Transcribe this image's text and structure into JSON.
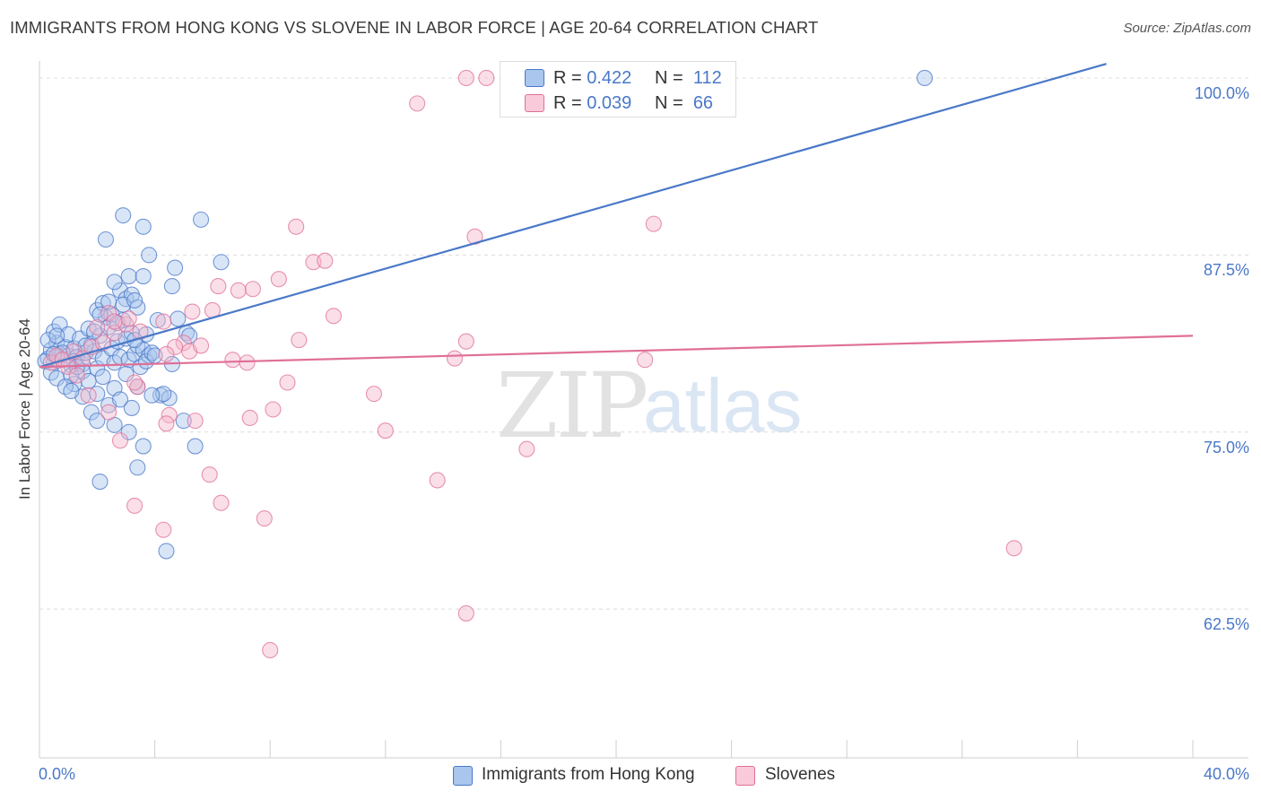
{
  "chart_data": {
    "type": "scatter",
    "title": "IMMIGRANTS FROM HONG KONG VS SLOVENE IN LABOR FORCE | AGE 20-64 CORRELATION CHART",
    "source": "Source: ZipAtlas.com",
    "ylabel": "In Labor Force | Age 20-64",
    "xlabel": "",
    "xlim": [
      0,
      40
    ],
    "ylim": [
      52,
      101.2
    ],
    "x_tick_labels": [
      "0.0%",
      "40.0%"
    ],
    "y_ticks": [
      62.5,
      75.0,
      87.5,
      100.0
    ],
    "y_tick_labels": [
      "62.5%",
      "75.0%",
      "87.5%",
      "100.0%"
    ],
    "grid": true,
    "watermark": {
      "zip": "ZIP",
      "atlas": "atlas"
    },
    "legend_stats": [
      {
        "r_label": "R =",
        "r_value": "0.422",
        "n_label": "N =",
        "n_value": "112"
      },
      {
        "r_label": "R =",
        "r_value": "0.039",
        "n_label": "N =",
        "n_value": "66"
      }
    ],
    "series": [
      {
        "name": "Immigrants from Hong Kong",
        "color": "#4a78c8",
        "fill": "#a9c6ee",
        "trend": {
          "x": [
            0,
            37
          ],
          "y": [
            79.6,
            101.0
          ]
        },
        "points": [
          [
            0.3,
            80.2
          ],
          [
            0.4,
            80.8
          ],
          [
            0.5,
            79.9
          ],
          [
            0.6,
            81.3
          ],
          [
            0.7,
            80.5
          ],
          [
            0.8,
            80.1
          ],
          [
            0.9,
            81.0
          ],
          [
            1.0,
            80.4
          ],
          [
            1.1,
            79.7
          ],
          [
            1.2,
            80.9
          ],
          [
            1.3,
            80.3
          ],
          [
            0.5,
            82.1
          ],
          [
            0.7,
            82.6
          ],
          [
            1.0,
            81.9
          ],
          [
            1.2,
            80.0
          ],
          [
            1.4,
            81.6
          ],
          [
            1.5,
            79.8
          ],
          [
            1.6,
            80.6
          ],
          [
            1.7,
            82.3
          ],
          [
            1.8,
            81.2
          ],
          [
            1.9,
            80.7
          ],
          [
            2.0,
            79.5
          ],
          [
            2.1,
            81.8
          ],
          [
            2.2,
            80.2
          ],
          [
            2.3,
            83.1
          ],
          [
            2.4,
            82.4
          ],
          [
            2.5,
            80.9
          ],
          [
            2.6,
            79.9
          ],
          [
            2.7,
            81.4
          ],
          [
            2.8,
            80.3
          ],
          [
            2.9,
            82.9
          ],
          [
            3.0,
            81.6
          ],
          [
            3.1,
            80.1
          ],
          [
            3.2,
            82.0
          ],
          [
            3.3,
            80.5
          ],
          [
            3.4,
            81.1
          ],
          [
            3.5,
            79.6
          ],
          [
            3.6,
            80.8
          ],
          [
            3.7,
            81.9
          ],
          [
            3.8,
            80.4
          ],
          [
            2.0,
            83.6
          ],
          [
            2.2,
            84.1
          ],
          [
            2.5,
            83.3
          ],
          [
            2.8,
            85.0
          ],
          [
            3.0,
            84.4
          ],
          [
            2.6,
            85.6
          ],
          [
            3.2,
            84.7
          ],
          [
            2.9,
            84.0
          ],
          [
            3.4,
            83.8
          ],
          [
            3.1,
            86.0
          ],
          [
            2.3,
            88.6
          ],
          [
            2.9,
            90.3
          ],
          [
            3.6,
            89.5
          ],
          [
            3.8,
            87.5
          ],
          [
            4.7,
            86.6
          ],
          [
            5.6,
            90.0
          ],
          [
            6.3,
            87.0
          ],
          [
            4.6,
            85.3
          ],
          [
            3.6,
            86.0
          ],
          [
            3.3,
            84.3
          ],
          [
            1.5,
            79.3
          ],
          [
            1.7,
            78.6
          ],
          [
            2.0,
            77.7
          ],
          [
            2.2,
            78.9
          ],
          [
            2.4,
            76.9
          ],
          [
            2.6,
            78.1
          ],
          [
            2.8,
            77.3
          ],
          [
            3.0,
            79.1
          ],
          [
            3.2,
            76.7
          ],
          [
            3.4,
            78.2
          ],
          [
            1.2,
            78.4
          ],
          [
            1.5,
            77.5
          ],
          [
            1.8,
            76.4
          ],
          [
            2.0,
            75.8
          ],
          [
            2.6,
            75.5
          ],
          [
            3.1,
            75.0
          ],
          [
            3.6,
            74.0
          ],
          [
            4.2,
            77.6
          ],
          [
            4.5,
            77.4
          ],
          [
            5.0,
            75.8
          ],
          [
            5.4,
            74.0
          ],
          [
            3.4,
            72.5
          ],
          [
            2.1,
            71.5
          ],
          [
            4.4,
            66.6
          ],
          [
            4.8,
            83.0
          ],
          [
            4.1,
            82.9
          ],
          [
            5.1,
            82.0
          ],
          [
            3.7,
            80.0
          ],
          [
            4.3,
            77.7
          ],
          [
            3.9,
            77.6
          ],
          [
            0.4,
            79.2
          ],
          [
            0.6,
            78.8
          ],
          [
            0.8,
            80.6
          ],
          [
            1.1,
            79.0
          ],
          [
            1.3,
            79.6
          ],
          [
            0.2,
            80.0
          ],
          [
            0.3,
            81.5
          ],
          [
            0.5,
            80.5
          ],
          [
            0.9,
            78.2
          ],
          [
            1.1,
            77.9
          ],
          [
            1.6,
            81.1
          ],
          [
            1.9,
            82.1
          ],
          [
            2.1,
            83.3
          ],
          [
            2.4,
            84.2
          ],
          [
            2.7,
            82.7
          ],
          [
            3.3,
            81.5
          ],
          [
            3.9,
            80.6
          ],
          [
            4.0,
            80.4
          ],
          [
            4.6,
            79.8
          ],
          [
            5.2,
            81.8
          ],
          [
            30.7,
            100.0
          ],
          [
            0.6,
            81.8
          ]
        ]
      },
      {
        "name": "Slovenes",
        "color": "#e06f98",
        "fill": "#f5b8cc",
        "trend": {
          "x": [
            0,
            40
          ],
          "y": [
            79.6,
            81.8
          ]
        },
        "points": [
          [
            0.4,
            79.9
          ],
          [
            0.6,
            80.4
          ],
          [
            0.8,
            80.1
          ],
          [
            1.0,
            79.6
          ],
          [
            1.2,
            80.7
          ],
          [
            1.5,
            80.2
          ],
          [
            1.8,
            81.0
          ],
          [
            2.0,
            82.4
          ],
          [
            2.2,
            81.3
          ],
          [
            2.6,
            82.0
          ],
          [
            2.4,
            83.4
          ],
          [
            3.0,
            82.6
          ],
          [
            3.5,
            82.1
          ],
          [
            4.3,
            82.8
          ],
          [
            5.3,
            83.5
          ],
          [
            5.0,
            81.3
          ],
          [
            5.2,
            80.7
          ],
          [
            4.7,
            81.0
          ],
          [
            5.6,
            81.1
          ],
          [
            6.0,
            83.6
          ],
          [
            4.4,
            80.5
          ],
          [
            6.7,
            80.1
          ],
          [
            7.2,
            79.9
          ],
          [
            6.9,
            85.0
          ],
          [
            7.4,
            85.1
          ],
          [
            8.3,
            85.8
          ],
          [
            8.9,
            89.5
          ],
          [
            9.5,
            87.0
          ],
          [
            9.9,
            87.1
          ],
          [
            10.2,
            83.2
          ],
          [
            9.0,
            81.5
          ],
          [
            6.2,
            85.3
          ],
          [
            14.4,
            80.2
          ],
          [
            15.1,
            88.8
          ],
          [
            21.3,
            89.7
          ],
          [
            21.0,
            80.1
          ],
          [
            13.8,
            71.6
          ],
          [
            12.0,
            75.1
          ],
          [
            11.6,
            77.7
          ],
          [
            8.6,
            78.5
          ],
          [
            8.1,
            76.6
          ],
          [
            7.3,
            76.0
          ],
          [
            6.3,
            70.0
          ],
          [
            5.9,
            72.0
          ],
          [
            5.4,
            75.8
          ],
          [
            4.5,
            76.2
          ],
          [
            4.4,
            75.6
          ],
          [
            3.4,
            78.2
          ],
          [
            3.3,
            78.5
          ],
          [
            2.4,
            76.4
          ],
          [
            2.8,
            74.4
          ],
          [
            3.3,
            69.8
          ],
          [
            4.3,
            68.1
          ],
          [
            7.8,
            68.9
          ],
          [
            16.9,
            73.8
          ],
          [
            13.1,
            98.2
          ],
          [
            14.8,
            62.2
          ],
          [
            8.0,
            59.6
          ],
          [
            14.8,
            81.4
          ],
          [
            33.8,
            66.8
          ],
          [
            14.8,
            100.0
          ],
          [
            15.5,
            100.0
          ],
          [
            3.1,
            83.0
          ],
          [
            2.6,
            82.8
          ],
          [
            1.7,
            77.6
          ],
          [
            1.3,
            79.0
          ]
        ]
      }
    ]
  }
}
